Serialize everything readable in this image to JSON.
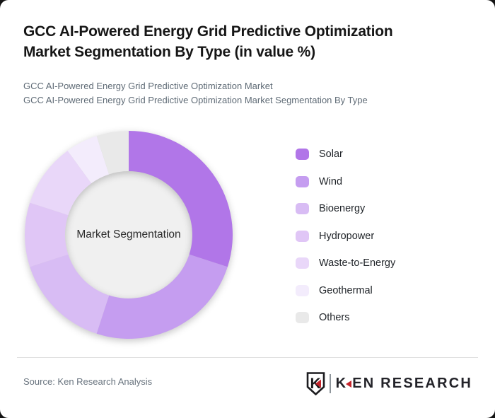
{
  "page": {
    "background": "#141414",
    "card_background": "#ffffff"
  },
  "header": {
    "title_line1": "GCC AI-Powered Energy Grid Predictive Optimization",
    "title_line2": "Market Segmentation By Type (in value %)",
    "subtitle_line1": "GCC AI-Powered Energy Grid Predictive Optimization Market",
    "subtitle_line2": "GCC AI-Powered Energy Grid Predictive Optimization Market Segmentation By Type"
  },
  "chart_data": {
    "type": "pie",
    "variant": "donut",
    "title": "GCC AI-Powered Energy Grid Predictive Optimization Market Segmentation By Type (in value %)",
    "unit": "value %",
    "center_label": "Market Segmentation",
    "categories": [
      "Solar",
      "Wind",
      "Bioenergy",
      "Hydropower",
      "Waste-to-Energy",
      "Geothermal",
      "Others"
    ],
    "values": [
      30,
      25,
      15,
      10,
      10,
      5,
      5
    ],
    "colors": [
      "#b176e8",
      "#c59df0",
      "#d8bcf4",
      "#e0c6f6",
      "#e9d7f9",
      "#f3ecfc",
      "#e9e9e9"
    ],
    "start_angle_deg": 0,
    "direction": "clockwise",
    "inner_radius_ratio": 0.612,
    "center_fill": "#f0f0f0",
    "legend_position": "right",
    "grid": false
  },
  "footer": {
    "source": "Source: Ken Research Analysis",
    "logo": {
      "badge_letter": "K",
      "word_k": "K",
      "word_rest": "EN RESEARCH",
      "accent_color": "#c4242b",
      "text_color": "#232329"
    }
  }
}
